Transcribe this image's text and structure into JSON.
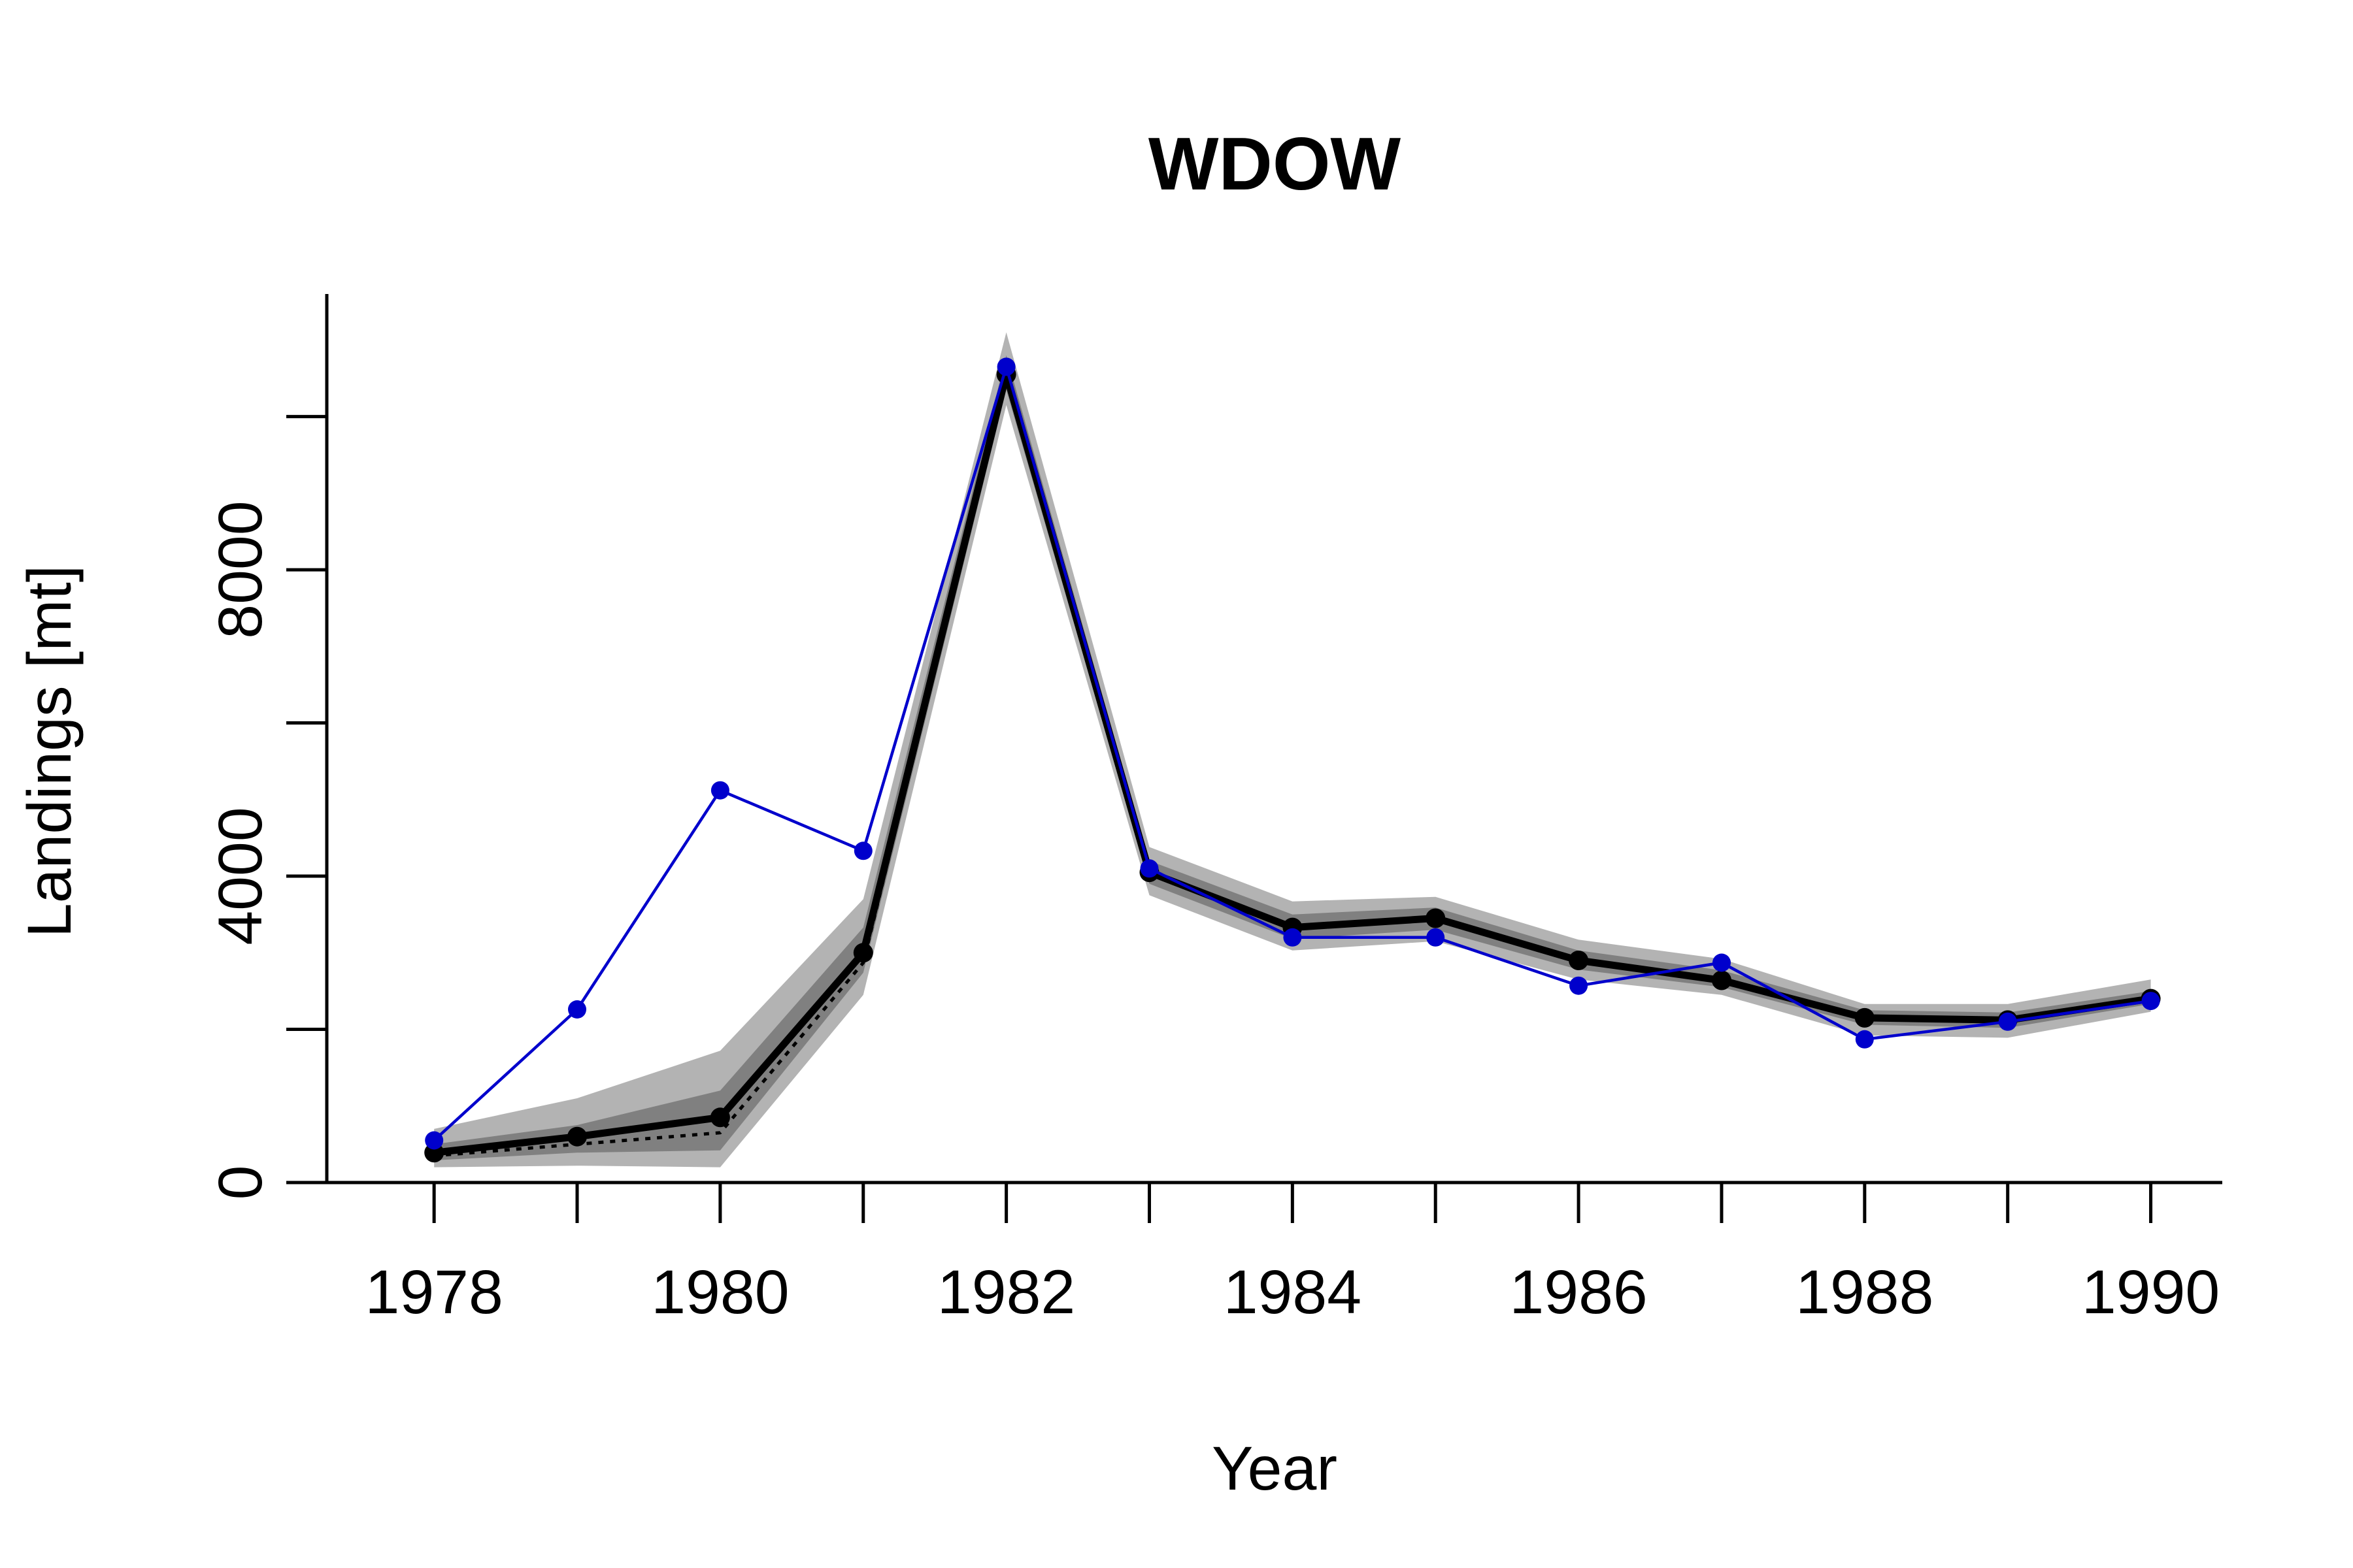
{
  "chart_data": {
    "type": "line",
    "title": "WDOW",
    "xlabel": "Year",
    "ylabel": "Landings [mt]",
    "xlim": [
      1977.25,
      1990.5
    ],
    "ylim": [
      0,
      11600
    ],
    "xticks": [
      1978,
      1980,
      1982,
      1984,
      1986,
      1988,
      1990
    ],
    "yticks": [
      0,
      4000,
      8000
    ],
    "yminor_ticks": [
      2000,
      6000,
      10000
    ],
    "x": [
      1978,
      1979,
      1980,
      1981,
      1982,
      1983,
      1984,
      1985,
      1986,
      1987,
      1988,
      1989,
      1990
    ],
    "series": [
      {
        "role": "observed",
        "color": "#0000CC",
        "marker": "circle",
        "values": [
          550,
          2260,
          5120,
          4330,
          10650,
          4100,
          3200,
          3200,
          2570,
          2870,
          1870,
          2100,
          2370
        ]
      },
      {
        "role": "estimated",
        "color": "#000000",
        "style": "solid",
        "marker": "circle",
        "values": [
          390,
          600,
          850,
          3000,
          10550,
          4050,
          3330,
          3450,
          2900,
          2640,
          2150,
          2120,
          2400
        ]
      },
      {
        "role": "median",
        "color": "#000000",
        "style": "dotted",
        "values": [
          350,
          500,
          650,
          2870,
          10550,
          4050,
          3330,
          3450,
          2900,
          2640,
          2150,
          2120,
          2400
        ]
      }
    ],
    "bands": [
      {
        "role": "outer-interval",
        "color": "#B3B3B3",
        "lower": [
          200,
          220,
          200,
          2450,
          10150,
          3750,
          3030,
          3150,
          2650,
          2450,
          1920,
          1890,
          2230
        ],
        "upper": [
          700,
          1100,
          1720,
          3700,
          11100,
          4380,
          3670,
          3730,
          3170,
          2920,
          2330,
          2330,
          2650
        ]
      },
      {
        "role": "inner-interval",
        "color": "#808080",
        "lower": [
          290,
          390,
          420,
          2740,
          10350,
          3900,
          3180,
          3300,
          2780,
          2550,
          2060,
          2020,
          2330
        ],
        "upper": [
          500,
          750,
          1200,
          3330,
          10800,
          4200,
          3500,
          3590,
          3030,
          2770,
          2250,
          2220,
          2500
        ]
      }
    ],
    "grid": false,
    "legend": "none"
  }
}
